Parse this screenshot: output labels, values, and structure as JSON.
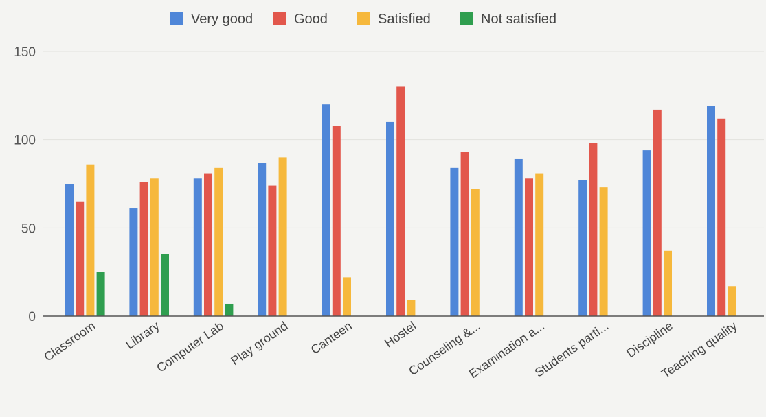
{
  "chart_data": {
    "type": "bar",
    "title": "",
    "xlabel": "",
    "ylabel": "",
    "ylim": [
      0,
      150
    ],
    "yticks": [
      0,
      50,
      100,
      150
    ],
    "grid": true,
    "legend_position": "top-center",
    "categories": [
      "Classroom",
      "Library",
      "Computer Lab",
      "Play ground",
      "Canteen",
      "Hostel",
      "Counseling &...",
      "Examination a...",
      "Students parti...",
      "Discipline",
      "Teaching quality"
    ],
    "series": [
      {
        "name": "Very good",
        "color": "#4f86d8",
        "values": [
          75,
          61,
          78,
          87,
          120,
          110,
          84,
          89,
          77,
          94,
          119
        ]
      },
      {
        "name": "Good",
        "color": "#e2574c",
        "values": [
          65,
          76,
          81,
          74,
          108,
          130,
          93,
          78,
          98,
          117,
          112
        ]
      },
      {
        "name": "Satisfied",
        "color": "#f6b83c",
        "values": [
          86,
          78,
          84,
          90,
          22,
          9,
          72,
          81,
          73,
          37,
          17
        ]
      },
      {
        "name": "Not satisfied",
        "color": "#2f9e4f",
        "values": [
          25,
          35,
          7,
          0,
          0,
          0,
          0,
          0,
          0,
          0,
          0
        ]
      }
    ]
  }
}
